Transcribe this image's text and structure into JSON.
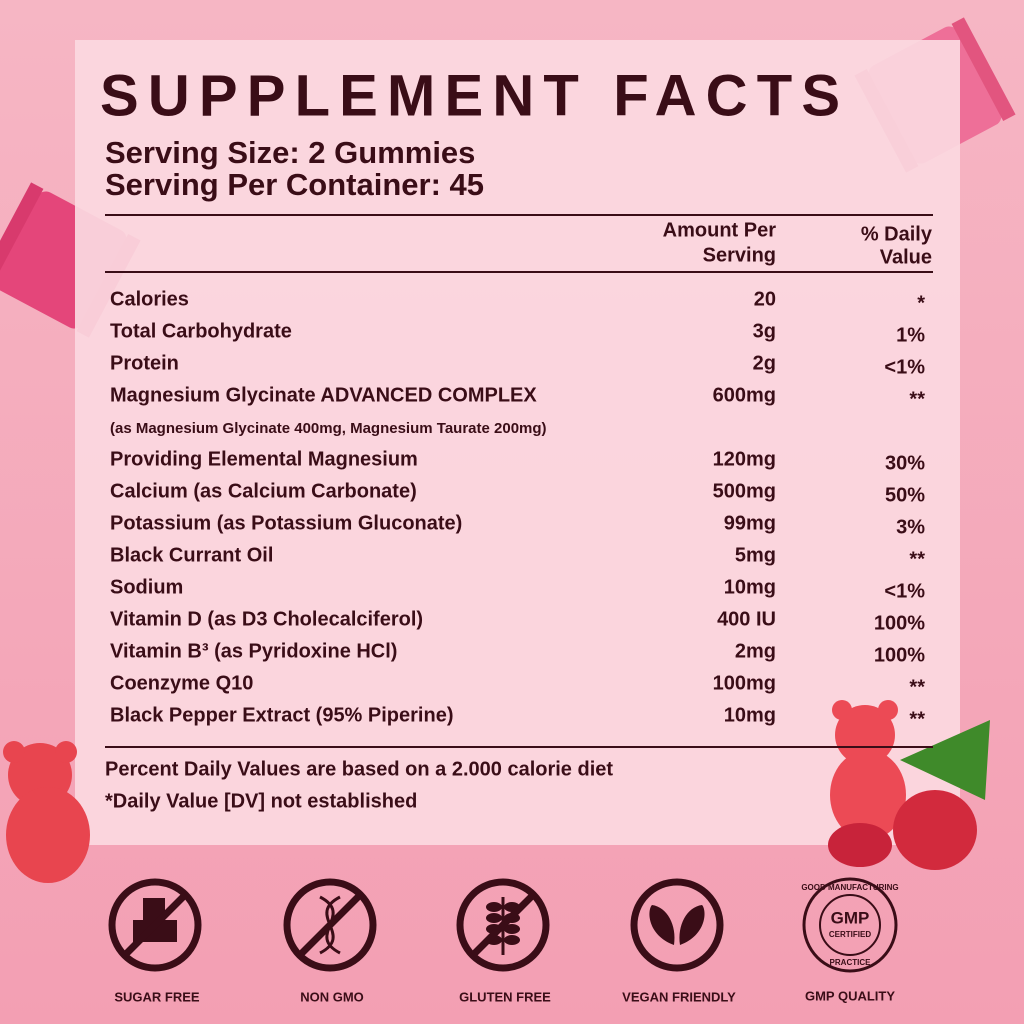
{
  "header": {
    "title": "SUPPLEMENT FACTS",
    "serving_size": "Serving Size: 2 Gummies",
    "servings_per_container": "Serving Per Container: 45"
  },
  "table": {
    "columns": {
      "amount": [
        "Amount Per",
        "Serving"
      ],
      "daily_value": [
        "% Daily",
        "Value"
      ]
    },
    "rows": [
      {
        "name": "Calories",
        "amount": "20",
        "dv": "*"
      },
      {
        "name": "Total Carbohydrate",
        "amount": "3g",
        "dv": "1%"
      },
      {
        "name": "Protein",
        "amount": "2g",
        "dv": "<1%"
      },
      {
        "name": "Magnesium Glycinate ADVANCED COMPLEX",
        "amount": "600mg",
        "dv": "**",
        "note": "(as Magnesium Glycinate 400mg, Magnesium Taurate 200mg)"
      },
      {
        "name": "Providing Elemental Magnesium",
        "amount": "120mg",
        "dv": "30%"
      },
      {
        "name": "Calcium (as Calcium Carbonate)",
        "amount": "500mg",
        "dv": "50%"
      },
      {
        "name": "Potassium (as Potassium Gluconate)",
        "amount": "99mg",
        "dv": "3%"
      },
      {
        "name": "Black Currant Oil",
        "amount": "5mg",
        "dv": "**"
      },
      {
        "name": "Sodium",
        "amount": "10mg",
        "dv": "<1%"
      },
      {
        "name": "Vitamin D (as D3 Cholecalciferol)",
        "amount": "400 IU",
        "dv": "100%"
      },
      {
        "name": "Vitamin B³ (as Pyridoxine HCl)",
        "amount": "2mg",
        "dv": "100%"
      },
      {
        "name": "Coenzyme Q10",
        "amount": "100mg",
        "dv": "**"
      },
      {
        "name": "Black Pepper Extract (95% Piperine)",
        "amount": "10mg",
        "dv": "**"
      }
    ]
  },
  "footnotes": [
    "Percent Daily Values are based on a 2.000 calorie diet",
    "*Daily Value [DV] not established"
  ],
  "badges": [
    {
      "label": "SUGAR FREE"
    },
    {
      "label": "NON GMO"
    },
    {
      "label": "GLUTEN FREE"
    },
    {
      "label": "VEGAN FRIENDLY"
    },
    {
      "label": "GMP QUALITY",
      "seal": [
        "GOOD MANUFACTURING",
        "GMP",
        "CERTIFIED",
        "PRACTICE"
      ]
    }
  ]
}
